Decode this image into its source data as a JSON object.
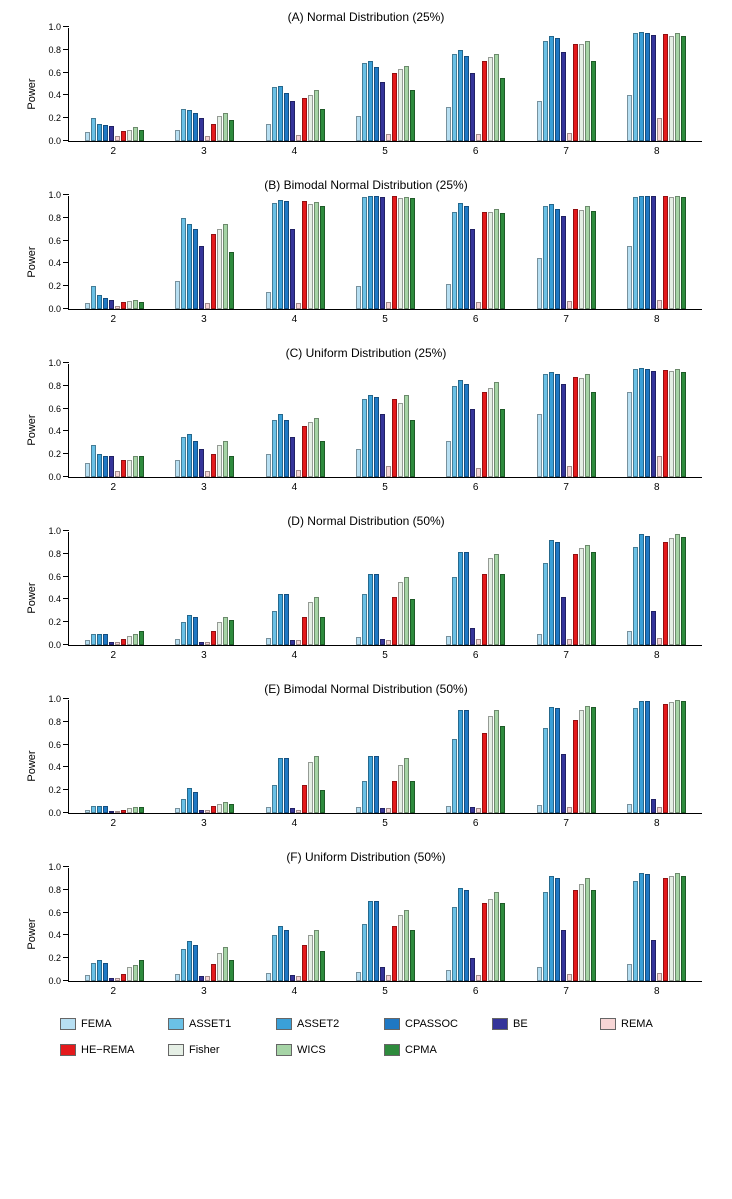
{
  "series": [
    {
      "key": "FEMA",
      "label": "FEMA",
      "color": "#b7dff2"
    },
    {
      "key": "ASSET1",
      "label": "ASSET1",
      "color": "#6bc1e6"
    },
    {
      "key": "ASSET2",
      "label": "ASSET2",
      "color": "#3aa0d8"
    },
    {
      "key": "CPASSOC",
      "label": "CPASSOC",
      "color": "#1f78c4"
    },
    {
      "key": "BE",
      "label": "BE",
      "color": "#34349a"
    },
    {
      "key": "REMA",
      "label": "REMA",
      "color": "#f7d6d6"
    },
    {
      "key": "HE-REMA",
      "label": "HE−REMA",
      "color": "#e41a1c"
    },
    {
      "key": "Fisher",
      "label": "Fisher",
      "color": "#e5efe5"
    },
    {
      "key": "WICS",
      "label": "WICS",
      "color": "#a6d4a6"
    },
    {
      "key": "CPMA",
      "label": "CPMA",
      "color": "#2e8b3d"
    }
  ],
  "ylim": [
    0,
    1
  ],
  "yticks": [
    0.0,
    0.2,
    0.4,
    0.6,
    0.8,
    1.0
  ],
  "ytick_labels": [
    "0.0",
    "0.2",
    "0.4",
    "0.6",
    "0.8",
    "1.0"
  ],
  "ylabel": "Power",
  "categories": [
    "2",
    "3",
    "4",
    "5",
    "6",
    "7",
    "8"
  ],
  "panels": [
    {
      "title": "(A) Normal Distribution (25%)",
      "data": {
        "2": [
          0.08,
          0.2,
          0.15,
          0.14,
          0.13,
          0.04,
          0.09,
          0.1,
          0.12,
          0.1
        ],
        "3": [
          0.1,
          0.28,
          0.27,
          0.25,
          0.2,
          0.04,
          0.15,
          0.22,
          0.25,
          0.18
        ],
        "4": [
          0.15,
          0.47,
          0.48,
          0.42,
          0.35,
          0.05,
          0.38,
          0.4,
          0.45,
          0.28
        ],
        "5": [
          0.22,
          0.68,
          0.7,
          0.65,
          0.52,
          0.06,
          0.6,
          0.63,
          0.66,
          0.45
        ],
        "6": [
          0.3,
          0.76,
          0.8,
          0.75,
          0.6,
          0.06,
          0.7,
          0.74,
          0.76,
          0.55
        ],
        "7": [
          0.35,
          0.88,
          0.92,
          0.9,
          0.78,
          0.07,
          0.85,
          0.85,
          0.88,
          0.7
        ],
        "8": [
          0.4,
          0.95,
          0.96,
          0.95,
          0.93,
          0.2,
          0.94,
          0.92,
          0.95,
          0.92
        ]
      }
    },
    {
      "title": "(B) Bimodal Normal Distribution (25%)",
      "data": {
        "2": [
          0.05,
          0.2,
          0.12,
          0.1,
          0.08,
          0.03,
          0.06,
          0.07,
          0.08,
          0.06
        ],
        "3": [
          0.25,
          0.8,
          0.75,
          0.7,
          0.55,
          0.05,
          0.66,
          0.7,
          0.75,
          0.5
        ],
        "4": [
          0.15,
          0.93,
          0.96,
          0.95,
          0.7,
          0.05,
          0.95,
          0.92,
          0.94,
          0.9
        ],
        "5": [
          0.2,
          0.98,
          0.99,
          0.99,
          0.98,
          0.06,
          0.99,
          0.97,
          0.98,
          0.97
        ],
        "6": [
          0.22,
          0.85,
          0.93,
          0.9,
          0.7,
          0.06,
          0.85,
          0.85,
          0.88,
          0.84
        ],
        "7": [
          0.45,
          0.9,
          0.92,
          0.88,
          0.82,
          0.07,
          0.88,
          0.87,
          0.9,
          0.86
        ],
        "8": [
          0.55,
          0.98,
          0.99,
          0.99,
          0.99,
          0.08,
          0.99,
          0.98,
          0.99,
          0.98
        ]
      }
    },
    {
      "title": "(C) Uniform Distribution (25%)",
      "data": {
        "2": [
          0.12,
          0.28,
          0.2,
          0.18,
          0.18,
          0.05,
          0.15,
          0.15,
          0.18,
          0.18
        ],
        "3": [
          0.15,
          0.35,
          0.38,
          0.32,
          0.25,
          0.05,
          0.2,
          0.28,
          0.32,
          0.18
        ],
        "4": [
          0.2,
          0.5,
          0.55,
          0.5,
          0.35,
          0.06,
          0.45,
          0.48,
          0.52,
          0.32
        ],
        "5": [
          0.25,
          0.68,
          0.72,
          0.7,
          0.55,
          0.1,
          0.68,
          0.65,
          0.72,
          0.5
        ],
        "6": [
          0.32,
          0.8,
          0.85,
          0.82,
          0.6,
          0.08,
          0.75,
          0.78,
          0.83,
          0.6
        ],
        "7": [
          0.55,
          0.9,
          0.92,
          0.9,
          0.82,
          0.1,
          0.88,
          0.87,
          0.9,
          0.75
        ],
        "8": [
          0.75,
          0.95,
          0.96,
          0.95,
          0.93,
          0.18,
          0.94,
          0.93,
          0.95,
          0.92
        ]
      }
    },
    {
      "title": "(D) Normal Distribution (50%)",
      "data": {
        "2": [
          0.04,
          0.1,
          0.1,
          0.1,
          0.03,
          0.03,
          0.05,
          0.08,
          0.1,
          0.12
        ],
        "3": [
          0.05,
          0.2,
          0.26,
          0.25,
          0.03,
          0.03,
          0.12,
          0.2,
          0.25,
          0.22
        ],
        "4": [
          0.06,
          0.3,
          0.45,
          0.45,
          0.04,
          0.04,
          0.25,
          0.38,
          0.42,
          0.25
        ],
        "5": [
          0.07,
          0.45,
          0.62,
          0.62,
          0.05,
          0.04,
          0.42,
          0.55,
          0.6,
          0.4
        ],
        "6": [
          0.08,
          0.6,
          0.82,
          0.82,
          0.15,
          0.05,
          0.62,
          0.76,
          0.8,
          0.62
        ],
        "7": [
          0.1,
          0.72,
          0.92,
          0.9,
          0.42,
          0.05,
          0.8,
          0.85,
          0.88,
          0.82
        ],
        "8": [
          0.12,
          0.86,
          0.97,
          0.96,
          0.3,
          0.06,
          0.9,
          0.94,
          0.97,
          0.95
        ]
      }
    },
    {
      "title": "(E) Bimodal Normal Distribution (50%)",
      "data": {
        "2": [
          0.03,
          0.06,
          0.06,
          0.06,
          0.02,
          0.02,
          0.03,
          0.04,
          0.05,
          0.05
        ],
        "3": [
          0.04,
          0.12,
          0.22,
          0.18,
          0.03,
          0.03,
          0.06,
          0.08,
          0.1,
          0.08
        ],
        "4": [
          0.05,
          0.25,
          0.48,
          0.48,
          0.04,
          0.03,
          0.25,
          0.45,
          0.5,
          0.2
        ],
        "5": [
          0.05,
          0.28,
          0.5,
          0.5,
          0.04,
          0.04,
          0.28,
          0.42,
          0.48,
          0.28
        ],
        "6": [
          0.06,
          0.65,
          0.9,
          0.9,
          0.05,
          0.04,
          0.7,
          0.85,
          0.9,
          0.76
        ],
        "7": [
          0.07,
          0.75,
          0.93,
          0.92,
          0.52,
          0.05,
          0.82,
          0.9,
          0.94,
          0.93
        ],
        "8": [
          0.08,
          0.92,
          0.98,
          0.98,
          0.12,
          0.05,
          0.96,
          0.97,
          0.99,
          0.98
        ]
      }
    },
    {
      "title": "(F) Uniform Distribution (50%)",
      "data": {
        "2": [
          0.05,
          0.16,
          0.18,
          0.16,
          0.03,
          0.03,
          0.06,
          0.12,
          0.14,
          0.18
        ],
        "3": [
          0.06,
          0.28,
          0.35,
          0.32,
          0.04,
          0.04,
          0.15,
          0.25,
          0.3,
          0.18
        ],
        "4": [
          0.07,
          0.4,
          0.48,
          0.45,
          0.05,
          0.04,
          0.32,
          0.4,
          0.45,
          0.26
        ],
        "5": [
          0.08,
          0.5,
          0.7,
          0.7,
          0.12,
          0.05,
          0.48,
          0.58,
          0.62,
          0.45
        ],
        "6": [
          0.1,
          0.65,
          0.82,
          0.8,
          0.2,
          0.05,
          0.68,
          0.72,
          0.78,
          0.68
        ],
        "7": [
          0.12,
          0.78,
          0.92,
          0.9,
          0.45,
          0.06,
          0.8,
          0.85,
          0.9,
          0.8
        ],
        "8": [
          0.15,
          0.88,
          0.95,
          0.94,
          0.36,
          0.07,
          0.9,
          0.92,
          0.95,
          0.92
        ]
      }
    }
  ],
  "legend_title": ""
}
